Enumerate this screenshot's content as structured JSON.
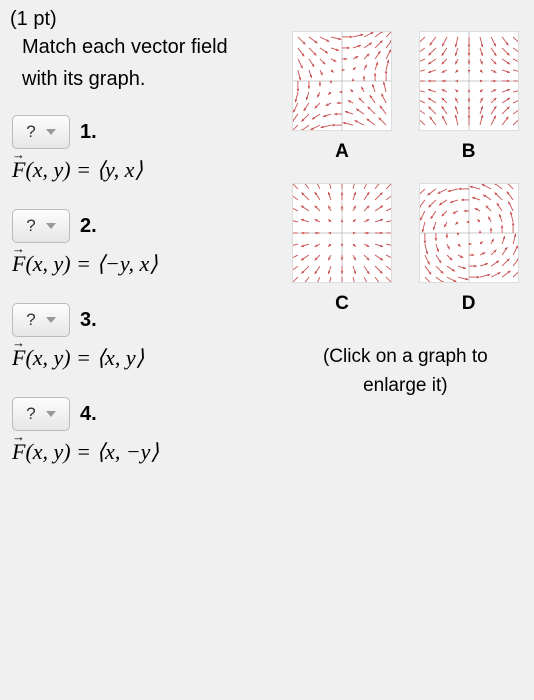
{
  "points": "(1 pt)",
  "prompt": "Match each vector field with its graph.",
  "questions": [
    {
      "num": "1.",
      "lhs": "F(x, y)",
      "rhs": "⟨y, x⟩"
    },
    {
      "num": "2.",
      "lhs": "F(x, y)",
      "rhs": "⟨−y, x⟩"
    },
    {
      "num": "3.",
      "lhs": "F(x, y)",
      "rhs": "⟨x, y⟩"
    },
    {
      "num": "4.",
      "lhs": "F(x, y)",
      "rhs": "⟨x, −y⟩"
    }
  ],
  "dropdown": {
    "placeholder": "?"
  },
  "graphs": {
    "labels": [
      "A",
      "B",
      "C",
      "D"
    ],
    "caption": "(Click on a graph to enlarge it)",
    "fields": {
      "A": "yx",
      "B": "xminusy",
      "C": "xy",
      "D": "minusyx"
    },
    "style": {
      "arrow_color": "#c94f4f",
      "axis_color": "#bbbbbb",
      "background": "#ffffff",
      "grid_range": 2,
      "grid_step": 0.5,
      "arrow_scale": 0.12,
      "head_size": 1.4
    }
  }
}
